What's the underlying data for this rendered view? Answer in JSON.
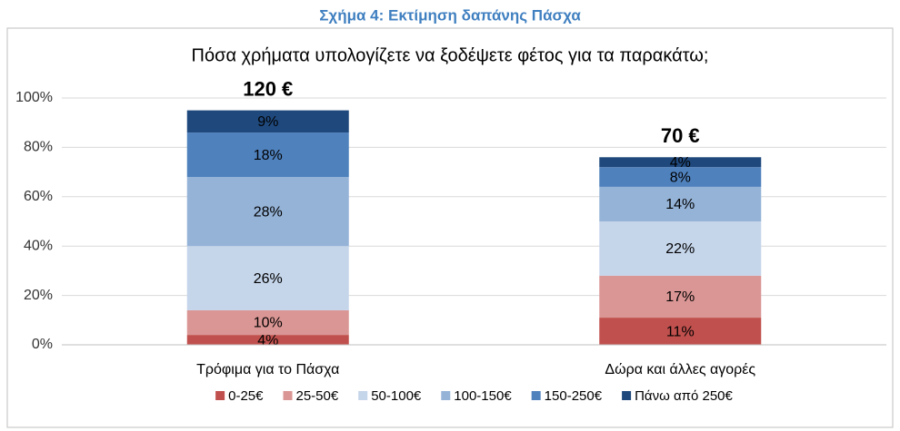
{
  "chart_data": {
    "type": "stacked_bar",
    "caption": "Σχήμα 4: Εκτίμηση δαπάνης Πάσχα",
    "title": "Πόσα χρήματα υπολογίζετε να ξοδέψετε φέτος για τα παρακάτω;",
    "categories": [
      "Τρόφιμα για το Πάσχα",
      "Δώρα και άλλες αγορές"
    ],
    "annotations": [
      "120 €",
      "70 €"
    ],
    "series": [
      {
        "name": "0-25€",
        "color": "#c0504d",
        "values": [
          4,
          11
        ],
        "value_labels": [
          "4%",
          "11%"
        ]
      },
      {
        "name": "25-50€",
        "color": "#da9694",
        "values": [
          10,
          17
        ],
        "value_labels": [
          "10%",
          "17%"
        ]
      },
      {
        "name": "50-100€",
        "color": "#c5d5ea",
        "values": [
          26,
          22
        ],
        "value_labels": [
          "26%",
          "22%"
        ]
      },
      {
        "name": "100-150€",
        "color": "#95b3d7",
        "values": [
          28,
          14
        ],
        "value_labels": [
          "28%",
          "14%"
        ]
      },
      {
        "name": "150-250€",
        "color": "#4f81bd",
        "values": [
          18,
          8
        ],
        "value_labels": [
          "18%",
          "8%"
        ]
      },
      {
        "name": "Πάνω από 250€",
        "color": "#1f497d",
        "values": [
          9,
          4
        ],
        "value_labels": [
          "9%",
          "4%"
        ]
      }
    ],
    "ylim": [
      0,
      100
    ],
    "yticks": [
      {
        "value": 0,
        "label": "0%"
      },
      {
        "value": 20,
        "label": "20%"
      },
      {
        "value": 40,
        "label": "40%"
      },
      {
        "value": 60,
        "label": "60%"
      },
      {
        "value": 80,
        "label": "80%"
      },
      {
        "value": 100,
        "label": "100%"
      }
    ],
    "grid": true,
    "legend": "bottom"
  }
}
